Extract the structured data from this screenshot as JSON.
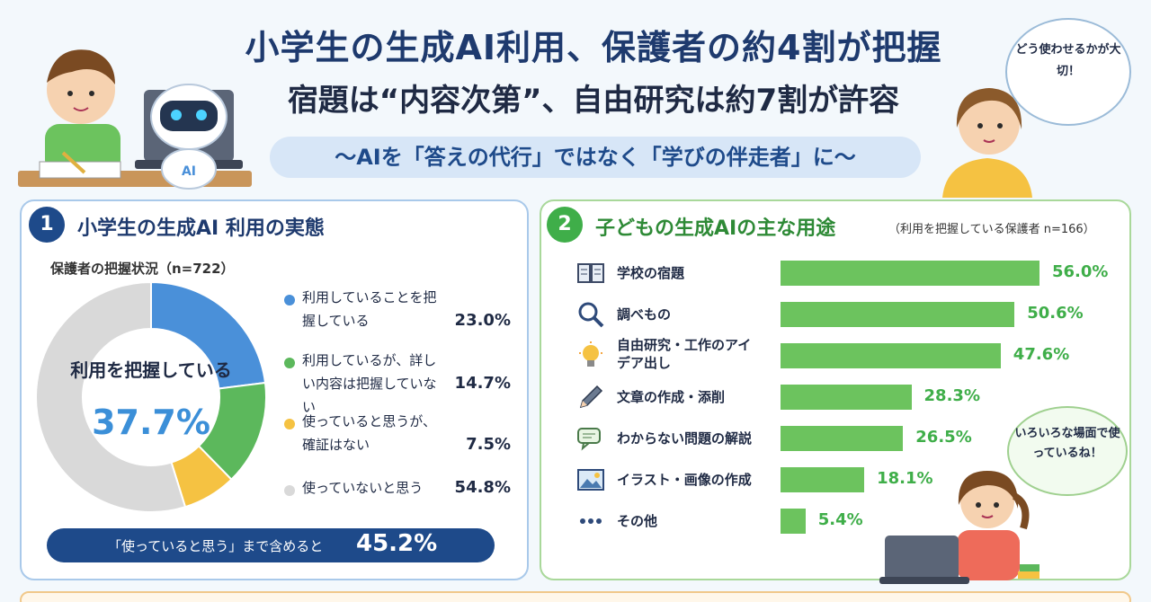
{
  "header": {
    "title_line1": "小学生の生成AI利用、保護者の約4割が把握",
    "title_line2": "宿題は“内容次第”、自由研究は約7割が許容",
    "subtitle": "〜AIを「答えの代行」ではなく「学びの伴走者」に〜"
  },
  "illustrations": {
    "robot_label": "AI",
    "mother_bubble": "どう使わせるかが大切！",
    "girl_bubble": "いろいろな場面で使っているね！"
  },
  "panel1": {
    "badge": "1",
    "title": "小学生の生成AI 利用の実態",
    "status_label": "保護者の把握状況（n=722）",
    "center_label": "利用を把握している",
    "center_value": "37.7%",
    "legend": [
      {
        "text": "利用していることを把握している",
        "pct": "23.0%"
      },
      {
        "text": "利用しているが、詳しい内容は把握していない",
        "pct": "14.7%"
      },
      {
        "text": "使っていると思うが、確証はない",
        "pct": "7.5%"
      },
      {
        "text": "使っていないと思う",
        "pct": "54.8%"
      }
    ],
    "footer_text": "「使っていると思う」まで含めると",
    "footer_value": "45.2%"
  },
  "panel2": {
    "badge": "2",
    "title": "子どもの生成AIの主な用途",
    "note": "（利用を把握している保護者 n=166）"
  },
  "chart_data": [
    {
      "type": "pie",
      "title": "保護者の把握状況（n=722）",
      "categories": [
        "利用していることを把握している",
        "利用しているが、詳しい内容は把握していない",
        "使っていると思うが、確証はない",
        "使っていないと思う"
      ],
      "values": [
        23.0,
        14.7,
        7.5,
        54.8
      ],
      "colors": [
        "#4a90d9",
        "#5cb85c",
        "#f5c242",
        "#d9d9d9"
      ],
      "donut": true
    },
    {
      "type": "bar",
      "orientation": "horizontal",
      "title": "子どもの生成AIの主な用途",
      "categories": [
        "学校の宿題",
        "調べもの",
        "自由研究・工作のアイデア出し",
        "文章の作成・添削",
        "わからない問題の解説",
        "イラスト・画像の作成",
        "その他"
      ],
      "values": [
        56.0,
        50.6,
        47.6,
        28.3,
        26.5,
        18.1,
        5.4
      ],
      "value_labels": [
        "56.0%",
        "50.6%",
        "47.6%",
        "28.3%",
        "26.5%",
        "18.1%",
        "5.4%"
      ],
      "icons": [
        "book-icon",
        "search-icon",
        "lightbulb-icon",
        "pencil-icon",
        "chat-icon",
        "image-icon",
        "more-icon"
      ],
      "color": "#6cc35e",
      "xlim": [
        0,
        60
      ]
    }
  ]
}
